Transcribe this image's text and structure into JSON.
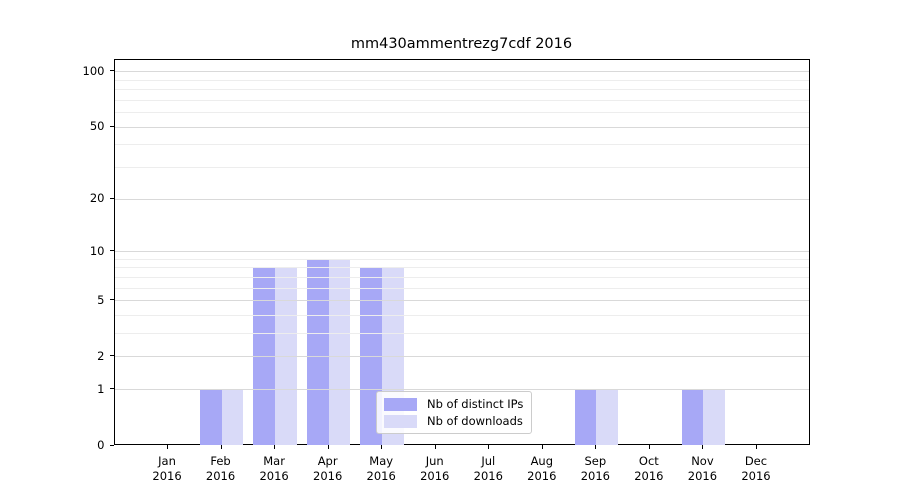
{
  "chart_data": {
    "type": "bar",
    "title": "mm430ammentrezg7cdf 2016",
    "categories": [
      "Jan 2016",
      "Feb 2016",
      "Mar 2016",
      "Apr 2016",
      "May 2016",
      "Jun 2016",
      "Jul 2016",
      "Aug 2016",
      "Sep 2016",
      "Oct 2016",
      "Nov 2016",
      "Dec 2016"
    ],
    "series": [
      {
        "name": "Nb of distinct IPs",
        "color": "#a7a8f6",
        "values": [
          0,
          1,
          8,
          9,
          8,
          0,
          0,
          0,
          1,
          0,
          1,
          0
        ]
      },
      {
        "name": "Nb of downloads",
        "color": "#d9daf8",
        "values": [
          0,
          1,
          8,
          9,
          8,
          0,
          0,
          0,
          1,
          0,
          1,
          0
        ]
      }
    ],
    "xlabel": "",
    "ylabel": "",
    "y_scale": "log1p",
    "y_ticks": [
      0,
      1,
      2,
      5,
      10,
      20,
      50,
      100
    ],
    "y_minor_gridlines": [
      3,
      4,
      6,
      7,
      8,
      9,
      30,
      40,
      60,
      70,
      80,
      90
    ],
    "ylim": [
      0,
      115
    ],
    "grid": true,
    "legend_position": "lower center"
  },
  "colors": {
    "bar_dark": "#a7a8f6",
    "bar_light": "#d9daf8",
    "grid_major": "#d9d9d9",
    "grid_minor": "#ededed",
    "spine": "#000000",
    "text": "#000000",
    "legend_border": "#cccccc"
  }
}
